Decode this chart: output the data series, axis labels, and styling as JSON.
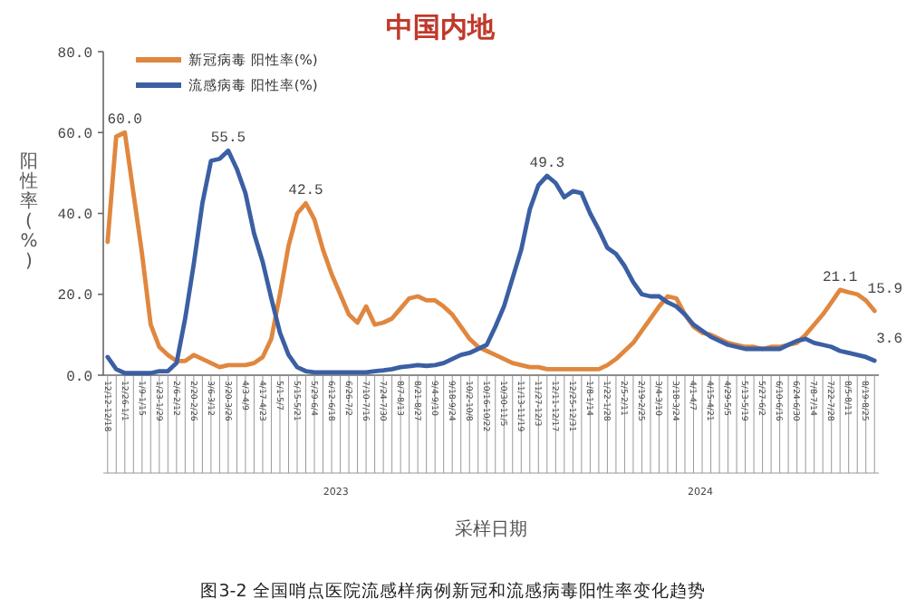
{
  "chart_data": {
    "type": "line",
    "title": "中国内地",
    "xlabel": "采样日期",
    "ylabel": "阳性率(%)",
    "categories": [
      "12/12-12/18",
      null,
      "12/26-1/1",
      null,
      "1/9-1/15",
      null,
      "1/23-1/29",
      null,
      "2/6-2/12",
      null,
      "2/20-2/26",
      null,
      "3/6-3/12",
      null,
      "3/20-3/26",
      null,
      "4/3-4/9",
      null,
      "4/17-4/23",
      null,
      "5/1-5/7",
      null,
      "5/15-5/21",
      null,
      "5/29-6/4",
      null,
      "6/12-6/18",
      null,
      "6/26-7/2",
      null,
      "7/10-7/16",
      null,
      "7/24-7/30",
      null,
      "8/7-8/13",
      null,
      "8/21-8/27",
      null,
      "9/4-9/10",
      null,
      "9/18-9/24",
      null,
      "10/2-10/8",
      null,
      "10/16-10/22",
      null,
      "10/30-11/5",
      null,
      "11/13-11/19",
      null,
      "11/27-12/3",
      null,
      "12/11-12/17",
      null,
      "12/25-12/31",
      null,
      "1/8-1/14",
      null,
      "1/22-1/28",
      null,
      "2/5-2/11",
      null,
      "2/19-2/25",
      null,
      "3/4-3/10",
      null,
      "3/18-3/24",
      null,
      "4/1-4/7",
      null,
      "4/15-4/21",
      null,
      "4/29-5/5",
      null,
      "5/13-5/19",
      null,
      "5/27-6/2",
      null,
      "6/10-6/16",
      null,
      "6/24-6/30",
      null,
      "7/8-7/14",
      null,
      "7/22-7/28",
      null,
      "8/5-8/11",
      null,
      "8/19-8/25",
      null
    ],
    "series": [
      {
        "name": "新冠病毒 阳性率(%)",
        "color": "#e0873f",
        "values": [
          33,
          59,
          60,
          45,
          30,
          12.5,
          7,
          5,
          3.5,
          3.5,
          5,
          4,
          3,
          2,
          2.5,
          2.5,
          2.5,
          3,
          4.5,
          9,
          20,
          32,
          40,
          42.5,
          38.5,
          31,
          25,
          20,
          15,
          13,
          17,
          12.5,
          13,
          14,
          16.5,
          19,
          19.5,
          18.5,
          18.5,
          17,
          15,
          12,
          9,
          7,
          6,
          5,
          4,
          3,
          2.5,
          2,
          2,
          1.5,
          1.5,
          1.5,
          1.5,
          1.5,
          1.5,
          1.5,
          2.5,
          4,
          6,
          8,
          11,
          14,
          17,
          19.5,
          19,
          15,
          12,
          10.5,
          10,
          9,
          8,
          7.5,
          7,
          7,
          6.5,
          7,
          7,
          7.5,
          8,
          10,
          12.5,
          15,
          18,
          21.1,
          20.5,
          20,
          18.5,
          15.9
        ],
        "value_labels": [
          null,
          null,
          "60.0",
          null,
          null,
          null,
          null,
          null,
          null,
          null,
          null,
          null,
          null,
          null,
          null,
          null,
          null,
          null,
          null,
          null,
          null,
          null,
          null,
          "42.5",
          null,
          null,
          null,
          null,
          null,
          null,
          null,
          null,
          null,
          null,
          null,
          null,
          null,
          null,
          null,
          null,
          null,
          null,
          null,
          null,
          null,
          null,
          null,
          null,
          null,
          null,
          null,
          null,
          null,
          null,
          null,
          null,
          null,
          null,
          null,
          null,
          null,
          null,
          null,
          null,
          null,
          null,
          null,
          null,
          null,
          null,
          null,
          null,
          null,
          null,
          null,
          null,
          null,
          null,
          null,
          null,
          null,
          null,
          null,
          null,
          null,
          "21.1",
          null,
          null,
          null,
          "15.9"
        ]
      },
      {
        "name": "流感病毒 阳性率(%)",
        "color": "#3b5fa3",
        "values": [
          4.5,
          1.5,
          0.5,
          0.5,
          0.5,
          0.5,
          1,
          1,
          3,
          14,
          27.5,
          42.5,
          53,
          53.5,
          55.5,
          51,
          45,
          35,
          28,
          19,
          10.5,
          5,
          2,
          1,
          0.7,
          0.7,
          0.7,
          0.7,
          0.7,
          0.7,
          0.7,
          1,
          1.2,
          1.5,
          2,
          2.2,
          2.5,
          2.3,
          2.5,
          3,
          4,
          5,
          5.5,
          6.5,
          7.5,
          12,
          17,
          24,
          31,
          41,
          47,
          49.3,
          47.5,
          44,
          45.5,
          45,
          40,
          36,
          31.5,
          30,
          27,
          23,
          20,
          19.5,
          19.5,
          18,
          17,
          15,
          12.5,
          11,
          9.5,
          8.5,
          7.5,
          7,
          6.5,
          6.5,
          6.5,
          6.5,
          6.5,
          7.5,
          8.5,
          9,
          8,
          7.5,
          7,
          6,
          5.5,
          5,
          4.5,
          3.6
        ],
        "value_labels": [
          null,
          null,
          null,
          null,
          null,
          null,
          null,
          null,
          null,
          null,
          null,
          null,
          null,
          null,
          "55.5",
          null,
          null,
          null,
          null,
          null,
          null,
          null,
          null,
          null,
          null,
          null,
          null,
          null,
          null,
          null,
          null,
          null,
          null,
          null,
          null,
          null,
          null,
          null,
          null,
          null,
          null,
          null,
          null,
          null,
          null,
          null,
          null,
          null,
          null,
          null,
          null,
          "49.3",
          null,
          null,
          null,
          null,
          null,
          null,
          null,
          null,
          null,
          null,
          null,
          null,
          null,
          null,
          null,
          null,
          null,
          null,
          null,
          null,
          null,
          null,
          null,
          null,
          null,
          null,
          null,
          null,
          null,
          null,
          null,
          null,
          null,
          null,
          null,
          null,
          null,
          "3.6"
        ]
      }
    ],
    "ylim": [
      0,
      80
    ],
    "yticks": [
      {
        "value": 0,
        "label": "0.0"
      },
      {
        "value": 20,
        "label": "20.0"
      },
      {
        "value": 40,
        "label": "40.0"
      },
      {
        "value": 60,
        "label": "60.0"
      },
      {
        "value": 80,
        "label": "80.0"
      }
    ],
    "grid": false,
    "legend": "top left",
    "line_style": "solid",
    "annotations": [
      "2023",
      "2024",
      "图3-2 全国哨点医院流感样病例新冠和流感病毒阳性率变化趋势"
    ]
  }
}
